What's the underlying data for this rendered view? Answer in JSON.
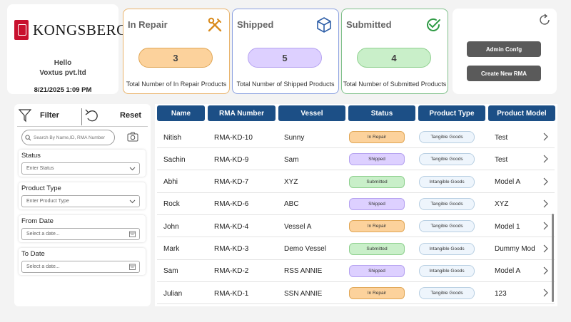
{
  "brand": {
    "name": "KONGSBERG",
    "greeting": "Hello",
    "company": "Voxtus pvt.ltd",
    "datetime": "8/21/2025 1:09 PM"
  },
  "stats": [
    {
      "title": "In Repair",
      "count": "3",
      "desc": "Total Number of In Repair Products",
      "icon": "wrench-screwdriver-icon"
    },
    {
      "title": "Shipped",
      "count": "5",
      "desc": "Total Number of Shipped Products",
      "icon": "box-icon"
    },
    {
      "title": "Submitted",
      "count": "4",
      "desc": "Total Number of Submitted Products",
      "icon": "check-circle-icon"
    }
  ],
  "actions": {
    "admin_config": "Admin Confg",
    "create_rma": "Create New RMA"
  },
  "filters": {
    "filter_label": "Filter",
    "reset_label": "Reset",
    "search_placeholder": "Search By Name,ID, RMA Number",
    "status": {
      "label": "Status",
      "placeholder": "Enter Status"
    },
    "product_type": {
      "label": "Product Type",
      "placeholder": "Enter Product Type"
    },
    "from_date": {
      "label": "From Date",
      "placeholder": "Select a date..."
    },
    "to_date": {
      "label": "To Date",
      "placeholder": "Select a date..."
    }
  },
  "table": {
    "headers": [
      "Name",
      "RMA Number",
      "Vessel",
      "Status",
      "Product Type",
      "Product Model"
    ],
    "rows": [
      {
        "name": "Nitish",
        "rma": "RMA-KD-10",
        "vessel": "Sunny",
        "status": "In Repair",
        "ptype": "Tangible Goods",
        "model": "Test"
      },
      {
        "name": "Sachin",
        "rma": "RMA-KD-9",
        "vessel": "Sam",
        "status": "Shipped",
        "ptype": "Tangible Goods",
        "model": "Test"
      },
      {
        "name": "Abhi",
        "rma": "RMA-KD-7",
        "vessel": "XYZ",
        "status": "Submitted",
        "ptype": "Intangible Goods",
        "model": "Model A"
      },
      {
        "name": "Rock",
        "rma": "RMA-KD-6",
        "vessel": "ABC",
        "status": "Shipped",
        "ptype": "Tangible Goods",
        "model": "XYZ"
      },
      {
        "name": "John",
        "rma": "RMA-KD-4",
        "vessel": "Vessel A",
        "status": "In Repair",
        "ptype": "Tangible Goods",
        "model": "Model 1"
      },
      {
        "name": "Mark",
        "rma": "RMA-KD-3",
        "vessel": "Demo Vessel",
        "status": "Submitted",
        "ptype": "Intangible Goods",
        "model": "Dummy Mod"
      },
      {
        "name": "Sam",
        "rma": "RMA-KD-2",
        "vessel": "RSS ANNIE",
        "status": "Shipped",
        "ptype": "Intangible Goods",
        "model": "Model A"
      },
      {
        "name": "Julian",
        "rma": "RMA-KD-1",
        "vessel": "SSN ANNIE",
        "status": "In Repair",
        "ptype": "Tangible Goods",
        "model": "123"
      }
    ]
  },
  "colors": {
    "header_blue": "#1c4f86",
    "repair": "#fcd29c",
    "shipped": "#ddd0ff",
    "submitted": "#c9efc9",
    "brand_red": "#c8102e"
  }
}
